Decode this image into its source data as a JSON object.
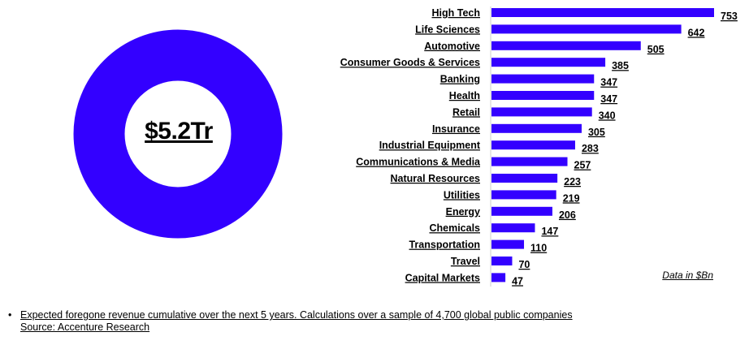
{
  "chart_data": [
    {
      "type": "pie",
      "center_label": "$5.2Tr",
      "values": [
        5.2
      ],
      "color": "#3300ff"
    },
    {
      "type": "bar",
      "orientation": "horizontal",
      "categories": [
        "High Tech",
        "Life Sciences",
        "Automotive",
        "Consumer Goods & Services",
        "Banking",
        "Health",
        "Retail",
        "Insurance",
        "Industrial Equipment",
        "Communications & Media",
        "Natural Resources",
        "Utilities",
        "Energy",
        "Chemicals",
        "Transportation",
        "Travel",
        "Capital Markets"
      ],
      "values": [
        753,
        642,
        505,
        385,
        347,
        347,
        340,
        305,
        283,
        257,
        223,
        219,
        206,
        147,
        110,
        70,
        47
      ],
      "xlim": [
        0,
        753
      ],
      "bar_color": "#3300ff",
      "units_note": "Data in $Bn",
      "grid": false
    }
  ],
  "footnote": {
    "line1": "Expected foregone revenue cumulative over the next 5 years. Calculations over a sample of 4,700 global public companies",
    "line2": "Source: Accenture Research"
  }
}
